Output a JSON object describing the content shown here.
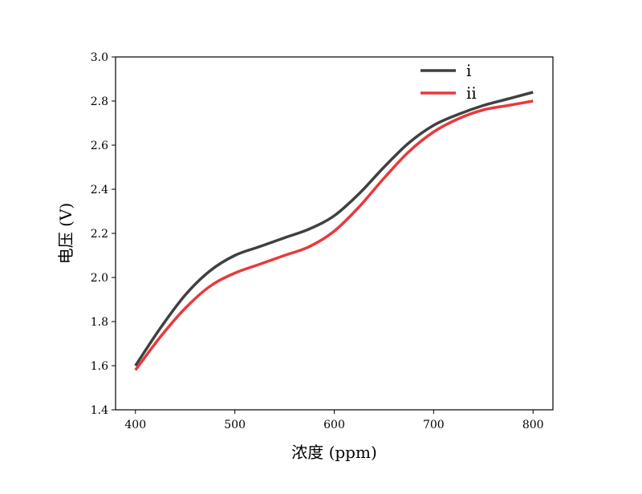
{
  "chart_data": {
    "type": "line",
    "title": "",
    "xlabel": "浓度 (ppm)",
    "ylabel": "电压 (V)",
    "xlim": [
      380,
      820
    ],
    "ylim": [
      1.4,
      3.0
    ],
    "x_ticks": [
      400,
      500,
      600,
      700,
      800
    ],
    "y_ticks": [
      1.4,
      1.6,
      1.8,
      2.0,
      2.2,
      2.4,
      2.6,
      2.8,
      3.0
    ],
    "x_tick_labels": [
      "400",
      "500",
      "600",
      "700",
      "800"
    ],
    "y_tick_labels": [
      "1.4",
      "1.6",
      "1.8",
      "2.0",
      "2.2",
      "2.4",
      "2.6",
      "2.8",
      "3.0"
    ],
    "grid": false,
    "legend": "top-right",
    "x": [
      400,
      425,
      450,
      475,
      500,
      525,
      550,
      575,
      600,
      625,
      650,
      675,
      700,
      725,
      750,
      775,
      800
    ],
    "series": [
      {
        "name": "i",
        "color": "#404040",
        "values": [
          1.6,
          1.77,
          1.92,
          2.03,
          2.1,
          2.14,
          2.18,
          2.22,
          2.28,
          2.38,
          2.5,
          2.61,
          2.69,
          2.74,
          2.78,
          2.81,
          2.84
        ]
      },
      {
        "name": "ii",
        "color": "#e8393c",
        "values": [
          1.58,
          1.73,
          1.86,
          1.96,
          2.02,
          2.06,
          2.1,
          2.14,
          2.21,
          2.32,
          2.45,
          2.57,
          2.66,
          2.72,
          2.76,
          2.78,
          2.8
        ]
      }
    ]
  }
}
